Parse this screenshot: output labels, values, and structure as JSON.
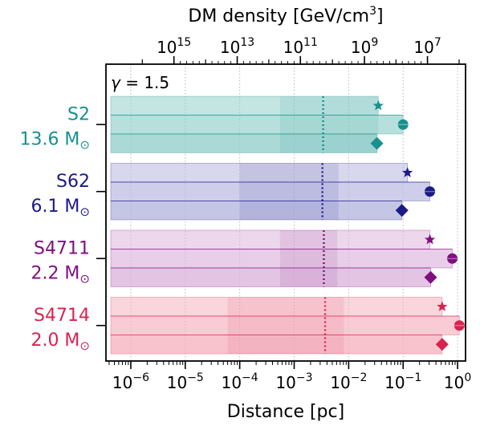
{
  "chart_data": {
    "type": "bar",
    "xlabel": "Distance [pc]",
    "x2label": "DM density [GeV/cm³]",
    "x2label_main": "DM density [GeV/cm",
    "x2label_sup": "3",
    "x2label_end": "]",
    "xscale": "log",
    "xlim": [
      3.5e-07,
      1.4
    ],
    "x_ticks": [
      {
        "value": 1e-06,
        "base": "10",
        "exp": "−6"
      },
      {
        "value": 1e-05,
        "base": "10",
        "exp": "−5"
      },
      {
        "value": 0.0001,
        "base": "10",
        "exp": "−4"
      },
      {
        "value": 0.001,
        "base": "10",
        "exp": "−3"
      },
      {
        "value": 0.01,
        "base": "10",
        "exp": "−2"
      },
      {
        "value": 0.1,
        "base": "10",
        "exp": "−1"
      },
      {
        "value": 1,
        "base": "10",
        "exp": "0"
      }
    ],
    "x2_ticks": [
      {
        "density": 1000000000000000.0,
        "distance": 6.2e-06,
        "base": "10",
        "exp": "15"
      },
      {
        "density": 10000000000000.0,
        "distance": 9e-05,
        "base": "10",
        "exp": "13"
      },
      {
        "density": 100000000000.0,
        "distance": 0.0013,
        "base": "10",
        "exp": "11"
      },
      {
        "density": 1000000000.0,
        "distance": 0.0195,
        "base": "10",
        "exp": "9"
      },
      {
        "density": 10000000.0,
        "distance": 0.28,
        "base": "10",
        "exp": "7"
      }
    ],
    "annotation": "γ = 1.5",
    "annotation_gamma": "γ",
    "annotation_rest": " = 1.5",
    "grid": true,
    "stars": [
      {
        "name": "S2",
        "mass": "13.6 M",
        "mass_symbol": "⊙",
        "color": "#17908e",
        "band_color": "#94cfcb",
        "vline": 0.0034,
        "inner_range": [
          0.00055,
          0.035
        ],
        "rows": [
          {
            "marker": "star",
            "value": 0.035
          },
          {
            "marker": "circle",
            "value": 0.1
          },
          {
            "marker": "diamond",
            "value": 0.033
          }
        ]
      },
      {
        "name": "S62",
        "mass": "6.1 M",
        "mass_symbol": "⊙",
        "color": "#1c1a87",
        "band_color": "#b6b6df",
        "vline": 0.0033,
        "inner_range": [
          0.0001,
          0.0065
        ],
        "rows": [
          {
            "marker": "star",
            "value": 0.12
          },
          {
            "marker": "circle",
            "value": 0.31
          },
          {
            "marker": "diamond",
            "value": 0.095
          }
        ]
      },
      {
        "name": "S4711",
        "mass": "2.2 M",
        "mass_symbol": "⊙",
        "color": "#800f80",
        "band_color": "#dcb6dc",
        "vline": 0.0035,
        "inner_range": [
          0.00055,
          0.0062
        ],
        "rows": [
          {
            "marker": "star",
            "value": 0.31
          },
          {
            "marker": "circle",
            "value": 0.8
          },
          {
            "marker": "diamond",
            "value": 0.32
          }
        ]
      },
      {
        "name": "S4714",
        "mass": "2.0 M",
        "mass_symbol": "⊙",
        "color": "#d8234f",
        "band_color": "#f6b3c0",
        "vline": 0.0037,
        "inner_range": [
          6e-05,
          0.0082
        ],
        "rows": [
          {
            "marker": "star",
            "value": 0.52
          },
          {
            "marker": "circle",
            "value": 1.08
          },
          {
            "marker": "diamond",
            "value": 0.52
          }
        ]
      }
    ]
  }
}
